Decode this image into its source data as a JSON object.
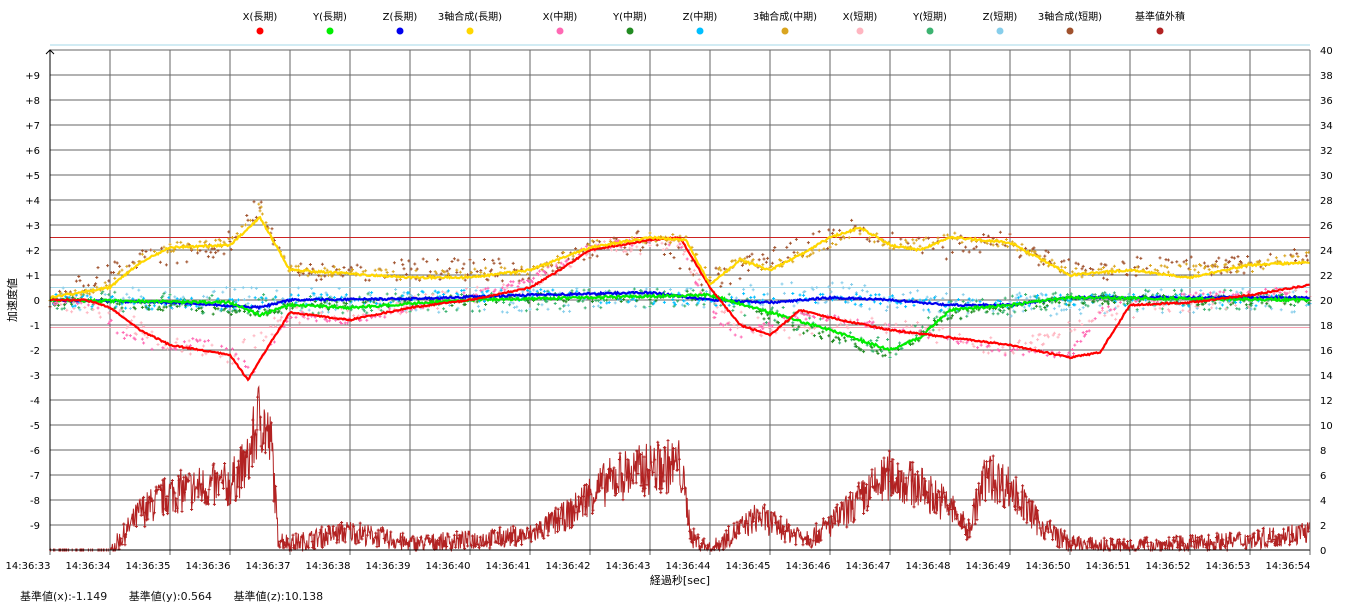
{
  "chart_data": {
    "type": "scatter",
    "xlabel": "経過秒[sec]",
    "ylabel": "加速度値",
    "x_ticks": [
      "14:36:33",
      "14:36:34",
      "14:36:35",
      "14:36:36",
      "14:36:37",
      "14:36:38",
      "14:36:39",
      "14:36:40",
      "14:36:41",
      "14:36:42",
      "14:36:43",
      "14:36:44",
      "14:36:45",
      "14:36:46",
      "14:36:47",
      "14:36:48",
      "14:36:49",
      "14:36:50",
      "14:36:51",
      "14:36:52",
      "14:36:53",
      "14:36:54"
    ],
    "xlim": [
      0,
      21
    ],
    "ylim_left": [
      -10,
      10
    ],
    "y_ticks_left": [
      "+9",
      "+8",
      "+7",
      "+6",
      "+5",
      "+4",
      "+3",
      "+2",
      "+1",
      "0",
      "-1",
      "-2",
      "-3",
      "-4",
      "-5",
      "-6",
      "-7",
      "-8",
      "-9"
    ],
    "ylim_right": [
      0,
      40
    ],
    "y_ticks_right": [
      "40",
      "38",
      "36",
      "34",
      "32",
      "30",
      "28",
      "26",
      "24",
      "22",
      "20",
      "18",
      "16",
      "14",
      "12",
      "10",
      "8",
      "6",
      "4",
      "2",
      "0"
    ],
    "threshold_lines": [
      {
        "value": 2.5,
        "color": "#cc2222"
      },
      {
        "value": 0.5,
        "color": "#a6d8e8"
      },
      {
        "value": -1.1,
        "color": "#f4a0b0"
      }
    ],
    "grid": true,
    "legend_position": "top",
    "series": [
      {
        "name": "X(長期)",
        "color": "#ff0000",
        "axis": "left",
        "noise": 0.03,
        "points": [
          [
            0,
            0
          ],
          [
            0.6,
            0
          ],
          [
            1,
            -0.3
          ],
          [
            1.5,
            -1.2
          ],
          [
            2,
            -1.8
          ],
          [
            2.5,
            -2
          ],
          [
            3,
            -2.2
          ],
          [
            3.3,
            -3.2
          ],
          [
            3.6,
            -2
          ],
          [
            4,
            -0.5
          ],
          [
            5,
            -0.8
          ],
          [
            6,
            -0.3
          ],
          [
            7,
            0
          ],
          [
            8,
            0.5
          ],
          [
            8.5,
            1.2
          ],
          [
            9,
            2
          ],
          [
            10,
            2.4
          ],
          [
            10.5,
            2.5
          ],
          [
            11,
            0.5
          ],
          [
            11.5,
            -1
          ],
          [
            12,
            -1.4
          ],
          [
            12.5,
            -0.4
          ],
          [
            13,
            -0.7
          ],
          [
            14,
            -1.2
          ],
          [
            15,
            -1.5
          ],
          [
            16,
            -1.8
          ],
          [
            17,
            -2.3
          ],
          [
            17.5,
            -2.1
          ],
          [
            18,
            -0.2
          ],
          [
            19,
            -0.1
          ],
          [
            20,
            0.2
          ],
          [
            21,
            0.6
          ]
        ]
      },
      {
        "name": "Y(長期)",
        "color": "#00ee00",
        "axis": "left",
        "noise": 0.05,
        "points": [
          [
            0,
            0
          ],
          [
            3,
            -0.1
          ],
          [
            3.5,
            -0.6
          ],
          [
            4,
            -0.2
          ],
          [
            5,
            -0.3
          ],
          [
            7,
            0
          ],
          [
            9,
            0.1
          ],
          [
            11,
            0.2
          ],
          [
            12,
            -0.5
          ],
          [
            13,
            -1.2
          ],
          [
            14,
            -2.0
          ],
          [
            14.5,
            -1.5
          ],
          [
            15,
            -0.4
          ],
          [
            16,
            -0.2
          ],
          [
            17,
            0.1
          ],
          [
            21,
            0
          ]
        ]
      },
      {
        "name": "Z(長期)",
        "color": "#0000ee",
        "axis": "left",
        "noise": 0.04,
        "points": [
          [
            0,
            0
          ],
          [
            2,
            -0.1
          ],
          [
            3.5,
            -0.3
          ],
          [
            4,
            0
          ],
          [
            6,
            0.05
          ],
          [
            8,
            0.2
          ],
          [
            10,
            0.3
          ],
          [
            11,
            0
          ],
          [
            12,
            -0.1
          ],
          [
            13,
            0.1
          ],
          [
            14,
            0
          ],
          [
            15,
            -0.2
          ],
          [
            16,
            -0.2
          ],
          [
            17,
            0.1
          ],
          [
            21,
            0.1
          ]
        ]
      },
      {
        "name": "3軸合成(長期)",
        "color": "#ffd700",
        "axis": "left",
        "noise": 0.04,
        "points": [
          [
            0,
            0.1
          ],
          [
            1,
            0.5
          ],
          [
            1.5,
            1.5
          ],
          [
            2,
            2.1
          ],
          [
            3,
            2.2
          ],
          [
            3.5,
            3.3
          ],
          [
            4,
            1.2
          ],
          [
            6,
            0.9
          ],
          [
            7,
            0.9
          ],
          [
            8,
            1.2
          ],
          [
            9,
            2.1
          ],
          [
            10,
            2.5
          ],
          [
            10.6,
            2.4
          ],
          [
            11,
            0.6
          ],
          [
            11.5,
            1.6
          ],
          [
            12,
            1.2
          ],
          [
            12.5,
            1.8
          ],
          [
            13,
            2.5
          ],
          [
            13.5,
            2.9
          ],
          [
            14,
            2.2
          ],
          [
            14.5,
            2.0
          ],
          [
            15,
            2.5
          ],
          [
            16,
            2.3
          ],
          [
            17,
            1.0
          ],
          [
            18,
            1.2
          ],
          [
            19,
            0.9
          ],
          [
            20,
            1.4
          ],
          [
            21,
            1.5
          ]
        ]
      },
      {
        "name": "X(中期)",
        "color": "#ff69b4",
        "axis": "left",
        "noise": 0.15,
        "points": [
          [
            0,
            0
          ],
          [
            0.8,
            -0.3
          ],
          [
            1.2,
            -1.4
          ],
          [
            2,
            -2.1
          ],
          [
            2.5,
            -1.5
          ],
          [
            3,
            -2
          ],
          [
            3.4,
            -2.8
          ],
          [
            4,
            -0.6
          ],
          [
            5,
            -0.9
          ],
          [
            6,
            -0.3
          ],
          [
            7,
            0.2
          ],
          [
            8,
            0.8
          ],
          [
            9,
            2.1
          ],
          [
            10,
            2.4
          ],
          [
            10.5,
            2.3
          ],
          [
            11,
            -0.5
          ],
          [
            11.5,
            -1.4
          ],
          [
            12.5,
            -0.6
          ],
          [
            13.5,
            -0.9
          ],
          [
            14.5,
            -1.3
          ],
          [
            16,
            -2.1
          ],
          [
            17,
            -2.2
          ],
          [
            17.5,
            -0.5
          ],
          [
            18,
            0
          ],
          [
            21,
            0.4
          ]
        ]
      },
      {
        "name": "Y(中期)",
        "color": "#228b22",
        "axis": "left",
        "noise": 0.2,
        "points": [
          [
            0,
            0
          ],
          [
            3.5,
            -0.5
          ],
          [
            4,
            -0.2
          ],
          [
            7,
            0
          ],
          [
            11,
            0.2
          ],
          [
            12,
            -0.7
          ],
          [
            13,
            -1.5
          ],
          [
            14,
            -2.2
          ],
          [
            15,
            -0.6
          ],
          [
            17,
            0
          ],
          [
            21,
            0
          ]
        ]
      },
      {
        "name": "Z(中期)",
        "color": "#00bfff",
        "axis": "left",
        "noise": 0.25,
        "points": [
          [
            0,
            0
          ],
          [
            3,
            -0.2
          ],
          [
            4,
            0
          ],
          [
            8,
            0.2
          ],
          [
            11,
            0
          ],
          [
            13,
            0.1
          ],
          [
            15,
            -0.2
          ],
          [
            17,
            0
          ],
          [
            21,
            0
          ]
        ]
      },
      {
        "name": "3軸合成(中期)",
        "color": "#daa520",
        "axis": "left",
        "noise": 0.2,
        "points": [
          [
            0,
            0.1
          ],
          [
            1,
            0.6
          ],
          [
            1.5,
            1.7
          ],
          [
            2,
            2.1
          ],
          [
            3,
            2.3
          ],
          [
            3.5,
            3.7
          ],
          [
            4,
            1.2
          ],
          [
            6,
            1
          ],
          [
            8,
            1.2
          ],
          [
            9,
            2.2
          ],
          [
            10,
            2.5
          ],
          [
            10.6,
            2.4
          ],
          [
            11,
            0.8
          ],
          [
            11.5,
            1.7
          ],
          [
            12,
            1.3
          ],
          [
            12.5,
            1.8
          ],
          [
            13.5,
            2.8
          ],
          [
            14,
            2.2
          ],
          [
            15,
            2.5
          ],
          [
            16,
            2.3
          ],
          [
            17,
            1.1
          ],
          [
            18,
            1.2
          ],
          [
            20,
            1.3
          ],
          [
            21,
            1.8
          ]
        ]
      },
      {
        "name": "X(短期)",
        "color": "#ffb6c1",
        "axis": "left",
        "noise": 0.35,
        "points": [
          [
            0,
            0
          ],
          [
            1,
            -0.5
          ],
          [
            2,
            -1.8
          ],
          [
            3,
            -2.3
          ],
          [
            4,
            -0.6
          ],
          [
            6,
            -0.2
          ],
          [
            8,
            0.6
          ],
          [
            9,
            2
          ],
          [
            10.5,
            2.3
          ],
          [
            11,
            -0.4
          ],
          [
            12,
            -1.2
          ],
          [
            14,
            -1
          ],
          [
            16,
            -2
          ],
          [
            17.5,
            -0.5
          ],
          [
            21,
            0.3
          ]
        ]
      },
      {
        "name": "Y(短期)",
        "color": "#3cb371",
        "axis": "left",
        "noise": 0.4,
        "points": [
          [
            0,
            0
          ],
          [
            4,
            -0.2
          ],
          [
            11,
            0.1
          ],
          [
            13,
            -1.2
          ],
          [
            14,
            -2
          ],
          [
            15,
            -0.4
          ],
          [
            17,
            0
          ],
          [
            21,
            0
          ]
        ]
      },
      {
        "name": "Z(短期)",
        "color": "#87ceeb",
        "axis": "left",
        "noise": 0.5,
        "points": [
          [
            0,
            0
          ],
          [
            4,
            0
          ],
          [
            11,
            0
          ],
          [
            13,
            0.3
          ],
          [
            15,
            -0.2
          ],
          [
            21,
            0
          ]
        ]
      },
      {
        "name": "3軸合成(短期)",
        "color": "#a0522d",
        "axis": "left",
        "noise": 0.45,
        "points": [
          [
            0,
            0.1
          ],
          [
            1.5,
            1.5
          ],
          [
            3,
            2.3
          ],
          [
            3.5,
            3.8
          ],
          [
            4,
            1.2
          ],
          [
            8,
            1.2
          ],
          [
            10,
            2.5
          ],
          [
            11,
            0.8
          ],
          [
            13.5,
            2.9
          ],
          [
            14.5,
            2
          ],
          [
            16,
            2.3
          ],
          [
            17,
            1.2
          ],
          [
            21,
            1.6
          ]
        ]
      },
      {
        "name": "基準値外積",
        "color": "#b22222",
        "axis": "right",
        "noise": 0.6,
        "points": [
          [
            0,
            0
          ],
          [
            1,
            0
          ],
          [
            1.2,
            1
          ],
          [
            1.5,
            3
          ],
          [
            2,
            4.5
          ],
          [
            2.5,
            5
          ],
          [
            3,
            5.2
          ],
          [
            3.3,
            7
          ],
          [
            3.5,
            11
          ],
          [
            3.7,
            8
          ],
          [
            3.8,
            1
          ],
          [
            4,
            0.5
          ],
          [
            5,
            1.5
          ],
          [
            6,
            0.5
          ],
          [
            7,
            0.8
          ],
          [
            8,
            1.2
          ],
          [
            8.7,
            3
          ],
          [
            9,
            4.5
          ],
          [
            9.5,
            6
          ],
          [
            10,
            6.5
          ],
          [
            10.5,
            6.8
          ],
          [
            10.7,
            1
          ],
          [
            11,
            0
          ],
          [
            11.8,
            2.7
          ],
          [
            12.3,
            1.5
          ],
          [
            12.7,
            1
          ],
          [
            13,
            2
          ],
          [
            13.5,
            4
          ],
          [
            14,
            6
          ],
          [
            14.5,
            5
          ],
          [
            15,
            3.5
          ],
          [
            15.3,
            1.5
          ],
          [
            15.6,
            6
          ],
          [
            16,
            5
          ],
          [
            16.5,
            2
          ],
          [
            17,
            0.5
          ],
          [
            17.5,
            0.3
          ],
          [
            18,
            0.3
          ],
          [
            19,
            0.5
          ],
          [
            20,
            0.8
          ],
          [
            21,
            1.5
          ]
        ]
      }
    ]
  },
  "footer": {
    "base_x": "基準値(x):-1.149",
    "base_y": "基準値(y):0.564",
    "base_z": "基準値(z):10.138"
  }
}
